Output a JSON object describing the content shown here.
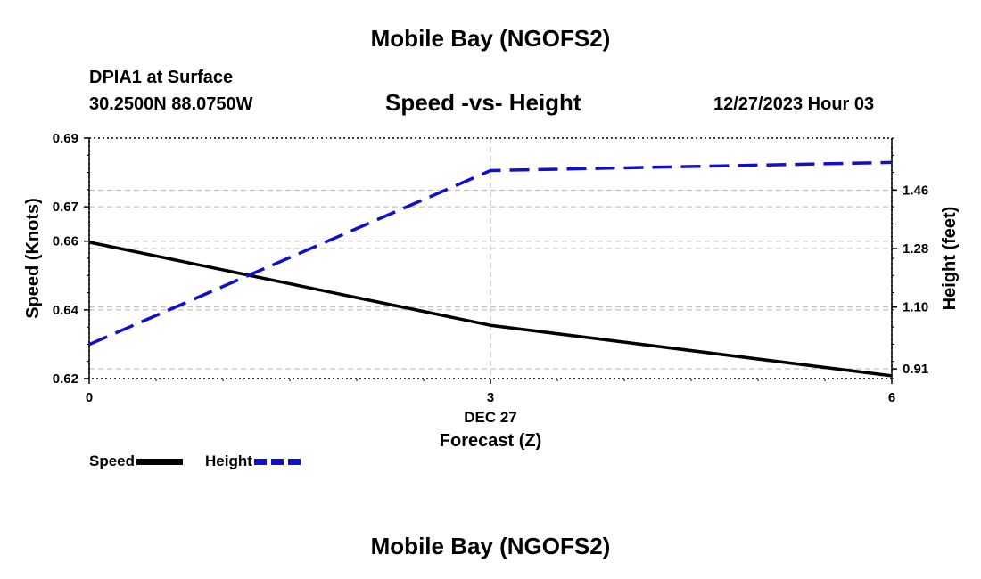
{
  "title": "Mobile Bay (NGOFS2)",
  "footer_title": "Mobile Bay (NGOFS2)",
  "station": "DPIA1 at Surface",
  "coordinates": "30.2500N  88.0750W",
  "subtitle": "Speed -vs- Height",
  "datetime": "12/27/2023 Hour 03",
  "legend": [
    {
      "label": "Speed",
      "color": "#000000",
      "dash": "solid"
    },
    {
      "label": "Height",
      "color": "#1010c8",
      "dash": "dashed"
    }
  ],
  "chart_data": {
    "type": "line",
    "title": "Speed -vs- Height",
    "xlabel": "Forecast (Z)",
    "xlabel_date": "DEC 27",
    "ylabel_left": "Speed (Knots)",
    "ylabel_right": "Height (feet)",
    "x_ticks": [
      0,
      3,
      6
    ],
    "x_tick_labels": [
      "0",
      "3",
      "6"
    ],
    "xlim": [
      0,
      6
    ],
    "y_left_ticks": [
      0.62,
      0.64,
      0.66,
      0.67,
      0.69
    ],
    "y_left_tick_labels": [
      "0.62",
      "0.64",
      "0.66",
      "0.67",
      "0.69"
    ],
    "ylim_left": [
      0.62,
      0.69
    ],
    "y_right_ticks": [
      0.91,
      1.1,
      1.28,
      1.46
    ],
    "y_right_tick_labels": [
      "0.91",
      "1.10",
      "1.28",
      "1.46"
    ],
    "ylim_right": [
      0.88,
      1.62
    ],
    "grid": true,
    "series": [
      {
        "name": "Speed",
        "axis": "left",
        "color": "#000000",
        "dash": "solid",
        "x": [
          0,
          3,
          6
        ],
        "values": [
          0.6597,
          0.6355,
          0.6208
        ]
      },
      {
        "name": "Height",
        "axis": "right",
        "color": "#1010c8",
        "dash": "dashed",
        "x": [
          0,
          3,
          6
        ],
        "values": [
          0.985,
          1.52,
          1.545
        ]
      }
    ]
  }
}
